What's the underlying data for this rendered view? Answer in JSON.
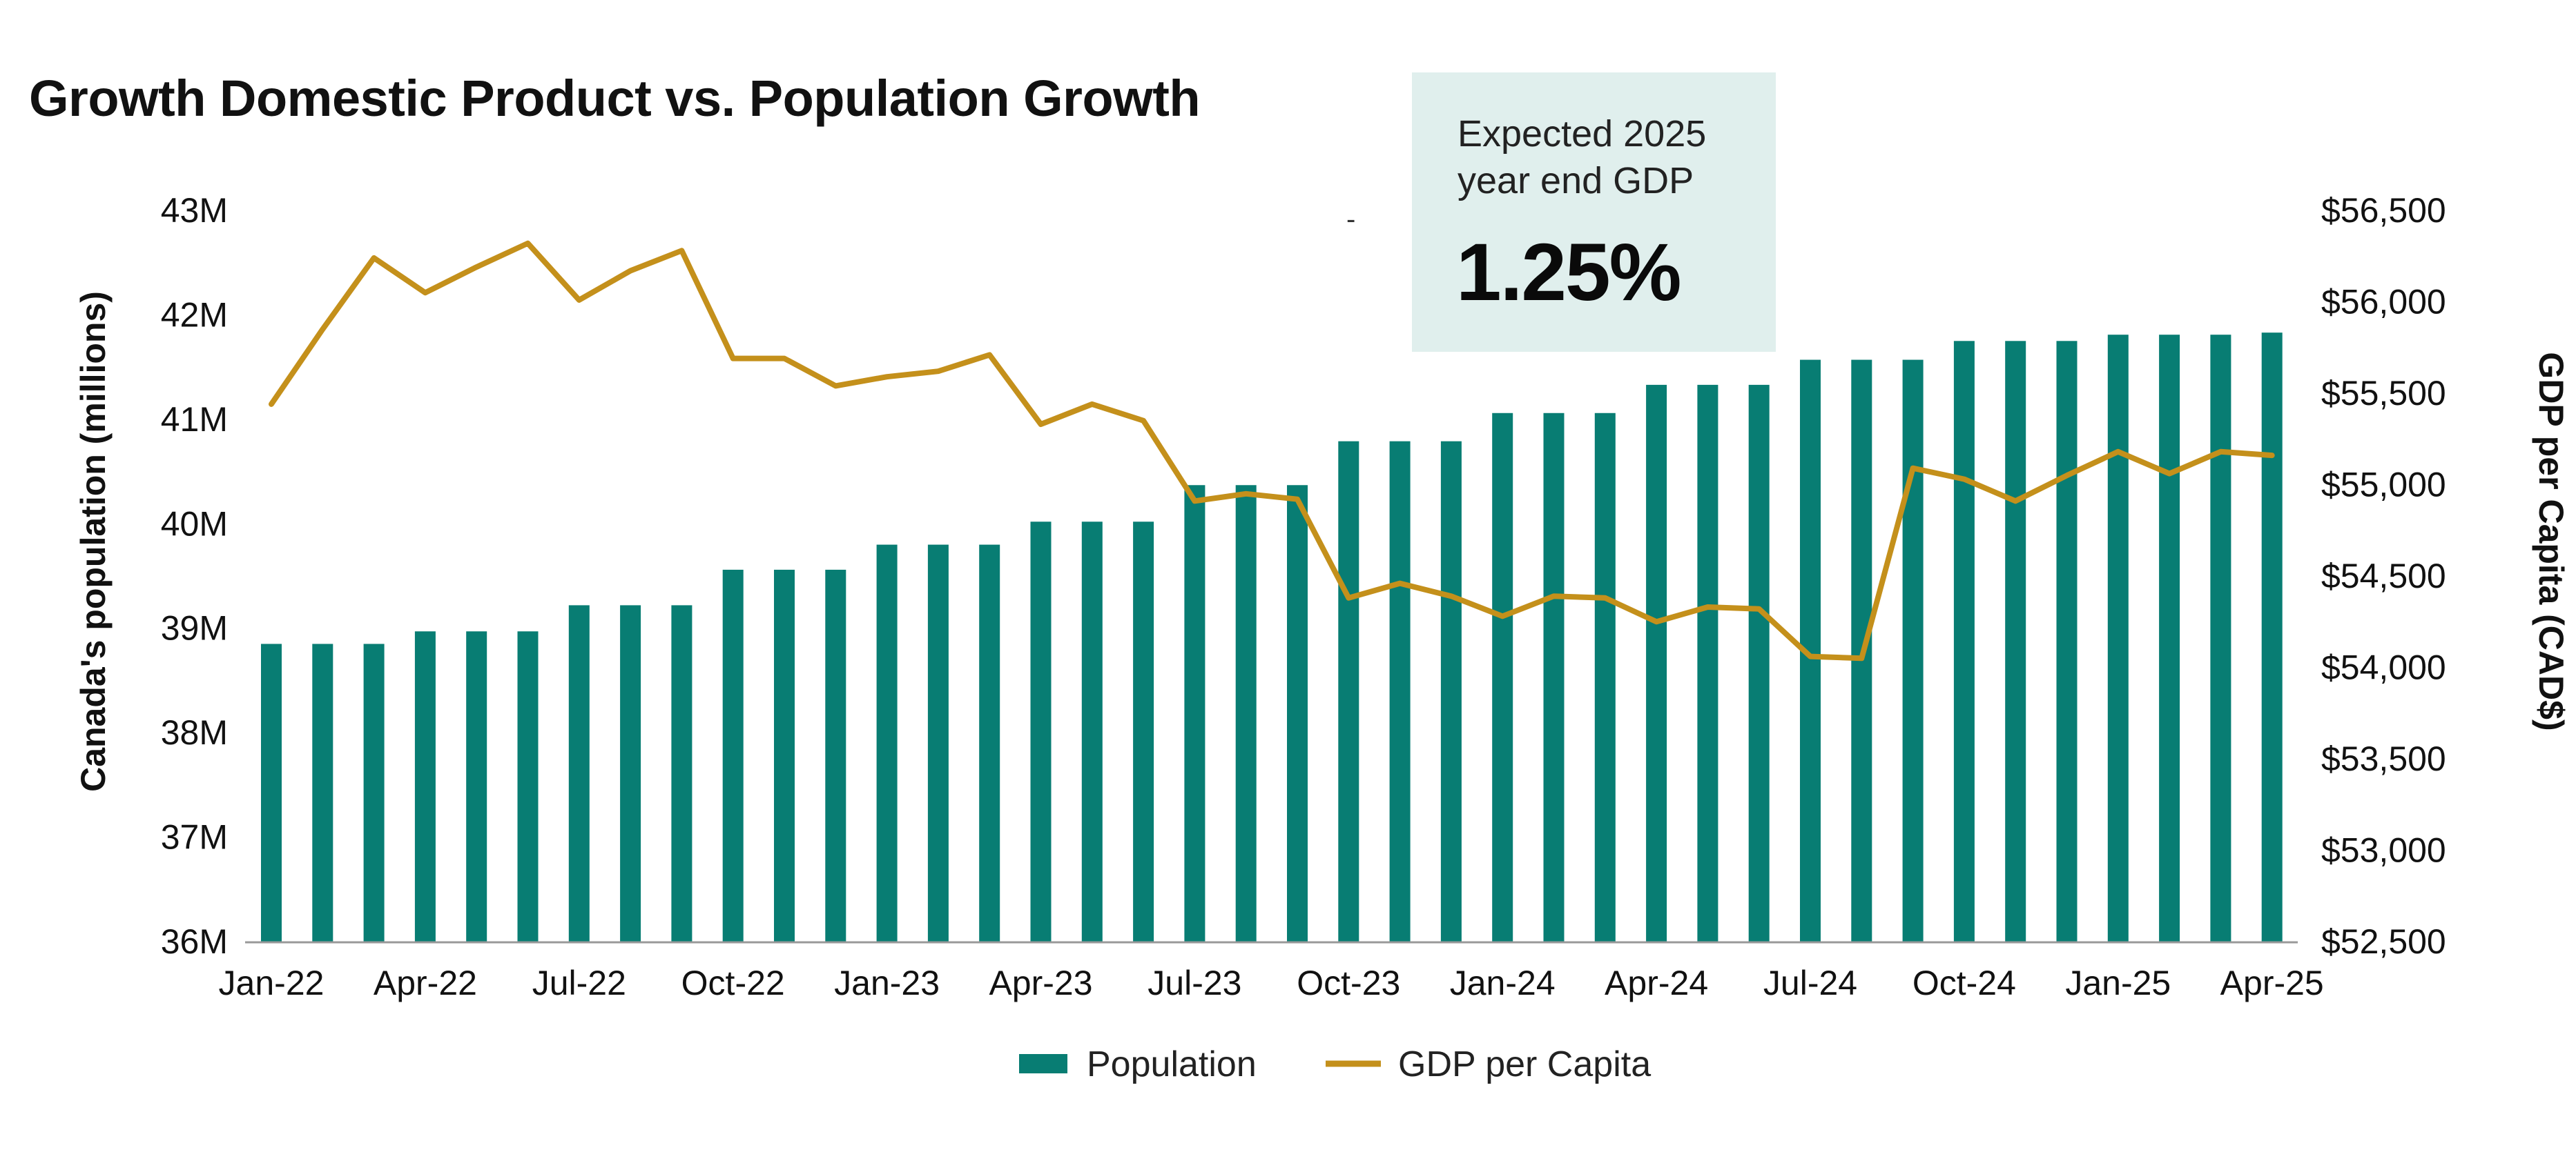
{
  "colors": {
    "bar": "#087d73",
    "line": "#c4901b",
    "callout_bg": "#e0efed",
    "axis": "#999999"
  },
  "callout": {
    "line1": "Expected 2025",
    "line2": "year end GDP",
    "value": "1.25%"
  },
  "dash_mark": "-",
  "chart_data": {
    "type": "bar",
    "title": "Growth Domestic Product vs. Population Growth",
    "categories": [
      "Jan-22",
      "Feb-22",
      "Mar-22",
      "Apr-22",
      "May-22",
      "Jun-22",
      "Jul-22",
      "Aug-22",
      "Sep-22",
      "Oct-22",
      "Nov-22",
      "Dec-22",
      "Jan-23",
      "Feb-23",
      "Mar-23",
      "Apr-23",
      "May-23",
      "Jun-23",
      "Jul-23",
      "Aug-23",
      "Sep-23",
      "Oct-23",
      "Nov-23",
      "Dec-23",
      "Jan-24",
      "Feb-24",
      "Mar-24",
      "Apr-24",
      "May-24",
      "Jun-24",
      "Jul-24",
      "Aug-24",
      "Sep-24",
      "Oct-24",
      "Nov-24",
      "Dec-24",
      "Jan-25",
      "Feb-25",
      "Mar-25",
      "Apr-25"
    ],
    "x_tick_labels": [
      "Jan-22",
      "Apr-22",
      "Jul-22",
      "Oct-22",
      "Jan-23",
      "Apr-23",
      "Jul-23",
      "Oct-23",
      "Jan-24",
      "Apr-24",
      "Jul-24",
      "Oct-24",
      "Jan-25",
      "Apr-25"
    ],
    "series": [
      {
        "name": "Population",
        "type": "bar",
        "axis": "left",
        "values": [
          38.85,
          38.85,
          38.85,
          38.97,
          38.97,
          38.97,
          39.22,
          39.22,
          39.22,
          39.56,
          39.56,
          39.56,
          39.8,
          39.8,
          39.8,
          40.02,
          40.02,
          40.02,
          40.37,
          40.37,
          40.37,
          40.79,
          40.79,
          40.79,
          41.06,
          41.06,
          41.06,
          41.33,
          41.33,
          41.33,
          41.57,
          41.57,
          41.57,
          41.75,
          41.75,
          41.75,
          41.81,
          41.81,
          41.81,
          41.83
        ]
      },
      {
        "name": "GDP per Capita",
        "type": "line",
        "axis": "right",
        "values": [
          55440,
          55850,
          56240,
          56050,
          56190,
          56320,
          56010,
          56170,
          56280,
          55690,
          55690,
          55540,
          55590,
          55620,
          55710,
          55330,
          55440,
          55350,
          54910,
          54950,
          54920,
          54380,
          54460,
          54390,
          54280,
          54390,
          54380,
          54250,
          54330,
          54320,
          54060,
          54050,
          55090,
          55030,
          54910,
          55050,
          55180,
          55060,
          55180,
          55160
        ]
      }
    ],
    "ylabel": "Canada's population (millions)",
    "y2label": "GDP per Capita (CAD$)",
    "ylim": [
      36,
      43
    ],
    "y2lim": [
      52500,
      56500
    ],
    "y_ticks": [
      "36M",
      "37M",
      "38M",
      "39M",
      "40M",
      "41M",
      "42M",
      "43M"
    ],
    "y2_ticks": [
      "$52,500",
      "$53,000",
      "$53,500",
      "$54,000",
      "$54,500",
      "$55,000",
      "$55,500",
      "$56,000",
      "$56,500"
    ],
    "legend": [
      "Population",
      "GDP per Capita"
    ],
    "legend_position": "bottom-center"
  }
}
